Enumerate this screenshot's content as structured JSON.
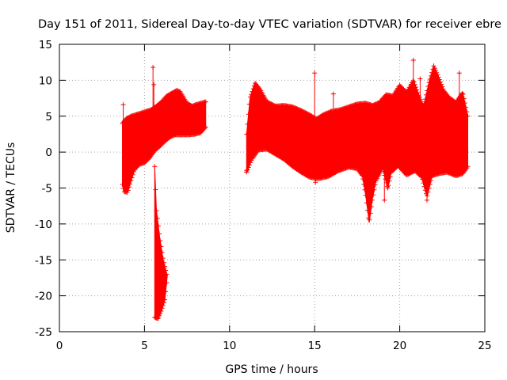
{
  "chart_data": {
    "type": "scatter",
    "title": "Day 151 of 2011, Sidereal Day-to-day VTEC variation (SDTVAR) for receiver ebre",
    "xlabel": "GPS time / hours",
    "ylabel": "SDTVAR / TECUs",
    "xlim": [
      0,
      25
    ],
    "ylim": [
      -25,
      15
    ],
    "xticks": [
      0,
      5,
      10,
      15,
      20,
      25
    ],
    "yticks": [
      -25,
      -20,
      -15,
      -10,
      -5,
      0,
      5,
      10,
      15
    ],
    "grid": true,
    "marker": "plus",
    "color": "#ff0000",
    "series": [
      {
        "upper": [
          [
            3.7,
            4.0
          ],
          [
            3.9,
            4.6
          ],
          [
            4.2,
            5.0
          ],
          [
            4.6,
            5.3
          ],
          [
            5.0,
            5.6
          ],
          [
            5.4,
            5.9
          ],
          [
            5.7,
            6.4
          ],
          [
            6.0,
            7.0
          ],
          [
            6.3,
            7.8
          ],
          [
            6.6,
            8.2
          ],
          [
            6.9,
            8.6
          ],
          [
            7.1,
            8.4
          ],
          [
            7.3,
            7.6
          ],
          [
            7.5,
            6.8
          ],
          [
            7.8,
            6.4
          ],
          [
            8.0,
            6.6
          ],
          [
            8.3,
            6.8
          ],
          [
            8.6,
            7.0
          ]
        ],
        "lower": [
          [
            3.7,
            -4.5
          ],
          [
            3.8,
            -5.5
          ],
          [
            4.0,
            -5.6
          ],
          [
            4.2,
            -4.0
          ],
          [
            4.4,
            -2.5
          ],
          [
            4.7,
            -1.7
          ],
          [
            5.0,
            -1.5
          ],
          [
            5.3,
            -0.8
          ],
          [
            5.6,
            0.2
          ],
          [
            5.9,
            0.8
          ],
          [
            6.2,
            1.5
          ],
          [
            6.5,
            2.1
          ],
          [
            6.8,
            2.4
          ],
          [
            7.2,
            2.4
          ],
          [
            7.6,
            2.4
          ],
          [
            8.0,
            2.5
          ],
          [
            8.3,
            2.7
          ],
          [
            8.6,
            3.5
          ]
        ],
        "spikes": [
          [
            5.5,
            11.8
          ],
          [
            5.55,
            9.4
          ],
          [
            3.75,
            6.6
          ]
        ]
      },
      {
        "upper": [
          [
            5.6,
            -2.0
          ],
          [
            5.7,
            -8.0
          ],
          [
            5.9,
            -12.0
          ],
          [
            6.1,
            -15.0
          ],
          [
            6.3,
            -17.0
          ]
        ],
        "lower": [
          [
            5.6,
            -23.0
          ],
          [
            5.8,
            -23.2
          ],
          [
            6.0,
            -22.0
          ],
          [
            6.2,
            -20.5
          ],
          [
            6.35,
            -17.0
          ]
        ]
      },
      {
        "upper": [
          [
            11.0,
            2.5
          ],
          [
            11.2,
            7.5
          ],
          [
            11.5,
            9.6
          ],
          [
            11.8,
            8.7
          ],
          [
            12.2,
            7.0
          ],
          [
            12.7,
            6.4
          ],
          [
            13.2,
            6.5
          ],
          [
            13.7,
            6.3
          ],
          [
            14.2,
            5.8
          ],
          [
            14.7,
            5.2
          ],
          [
            15.1,
            4.6
          ],
          [
            15.5,
            5.2
          ],
          [
            16.0,
            5.7
          ],
          [
            16.5,
            5.9
          ],
          [
            17.0,
            6.3
          ],
          [
            17.5,
            6.7
          ],
          [
            18.0,
            6.8
          ],
          [
            18.4,
            6.5
          ],
          [
            18.8,
            6.9
          ],
          [
            19.2,
            8.0
          ],
          [
            19.6,
            7.8
          ],
          [
            20.0,
            9.3
          ],
          [
            20.4,
            8.3
          ],
          [
            20.8,
            10.0
          ],
          [
            21.1,
            8.0
          ],
          [
            21.4,
            6.3
          ],
          [
            21.7,
            9.5
          ],
          [
            22.0,
            12.0
          ],
          [
            22.3,
            10.3
          ],
          [
            22.6,
            8.5
          ],
          [
            22.9,
            7.6
          ],
          [
            23.3,
            6.9
          ],
          [
            23.7,
            8.3
          ],
          [
            24.0,
            5.0
          ]
        ],
        "lower": [
          [
            11.0,
            -2.8
          ],
          [
            11.3,
            -1.0
          ],
          [
            11.7,
            0.3
          ],
          [
            12.2,
            0.4
          ],
          [
            12.7,
            -0.3
          ],
          [
            13.2,
            -1.0
          ],
          [
            13.7,
            -2.0
          ],
          [
            14.2,
            -2.8
          ],
          [
            14.7,
            -3.5
          ],
          [
            15.2,
            -3.7
          ],
          [
            15.8,
            -3.4
          ],
          [
            16.4,
            -2.6
          ],
          [
            17.0,
            -2.1
          ],
          [
            17.5,
            -2.3
          ],
          [
            17.8,
            -3.3
          ],
          [
            18.0,
            -6.0
          ],
          [
            18.2,
            -9.8
          ],
          [
            18.4,
            -6.5
          ],
          [
            18.6,
            -4.0
          ],
          [
            19.0,
            -2.2
          ],
          [
            19.3,
            -5.0
          ],
          [
            19.5,
            -2.8
          ],
          [
            19.9,
            -1.9
          ],
          [
            20.4,
            -3.2
          ],
          [
            20.9,
            -2.6
          ],
          [
            21.3,
            -3.5
          ],
          [
            21.6,
            -6.2
          ],
          [
            21.9,
            -3.3
          ],
          [
            22.3,
            -3.0
          ],
          [
            22.8,
            -2.8
          ],
          [
            23.3,
            -3.3
          ],
          [
            23.7,
            -3.0
          ],
          [
            24.0,
            -2.0
          ]
        ],
        "spikes": [
          [
            15.0,
            11.0
          ],
          [
            15.05,
            -4.2
          ],
          [
            16.1,
            8.1
          ],
          [
            19.1,
            -6.7
          ],
          [
            19.3,
            -5.0
          ],
          [
            20.8,
            12.8
          ],
          [
            21.2,
            10.2
          ],
          [
            21.6,
            -6.7
          ],
          [
            23.5,
            11.0
          ],
          [
            11.0,
            -2.6
          ]
        ]
      }
    ]
  }
}
